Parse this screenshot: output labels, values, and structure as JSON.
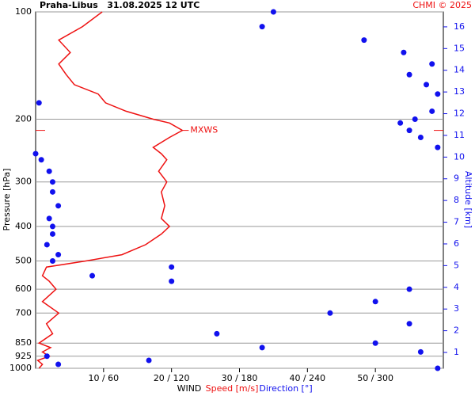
{
  "chart_data": {
    "type": "profile",
    "title": "Praha-Libus   31.08.2025 12 UTC",
    "credit": "CHMI © 2025",
    "ylabel": "Pressure [hPa]",
    "y2label": "Altitude [km]",
    "xlabel": "WIND",
    "xlabel_speed": "Speed [m/s]",
    "xlabel_direction": "Direction [°]",
    "ylog": true,
    "grid": true,
    "ylim": [
      100,
      1000
    ],
    "yticks": [
      100,
      200,
      300,
      400,
      500,
      600,
      700,
      850,
      925,
      1000
    ],
    "y2lim": [
      0.27,
      16.69
    ],
    "y2ticks": [
      1,
      2,
      3,
      4,
      5,
      6,
      7,
      8,
      9,
      10,
      11,
      12,
      13,
      14,
      15,
      16
    ],
    "xlim": [
      0,
      60
    ],
    "x2lim": [
      0,
      360
    ],
    "xticks": [
      {
        "value": 10,
        "label": "10 / 60"
      },
      {
        "value": 20,
        "label": "20 / 120"
      },
      {
        "value": 30,
        "label": "30 / 180"
      },
      {
        "value": 40,
        "label": "40 / 240"
      },
      {
        "value": 50,
        "label": "50 / 300"
      }
    ],
    "y": [
      1000,
      975,
      950,
      925,
      900,
      875,
      850,
      800,
      750,
      700,
      650,
      600,
      570,
      550,
      520,
      500,
      480,
      450,
      420,
      400,
      380,
      350,
      320,
      300,
      280,
      260,
      250,
      240,
      225,
      215,
      205,
      200,
      190,
      180,
      170,
      160,
      150,
      140,
      130,
      120,
      110,
      100
    ],
    "series": [
      {
        "name": "Speed [m/s]",
        "color": "#ee1111",
        "axis": "x",
        "values": [
          0.5,
          1,
          0.3,
          2,
          1,
          2.2,
          0.5,
          2.5,
          1.6,
          3.4,
          1,
          3,
          2,
          1,
          1.6,
          7.4,
          12.7,
          16.2,
          18.5,
          19.7,
          18.5,
          19,
          18.5,
          19.3,
          18.1,
          19.3,
          18.5,
          17.3,
          19.7,
          21.6,
          19.7,
          17.3,
          13.3,
          10.3,
          9.2,
          5.7,
          4.5,
          3.4,
          5.1,
          3.4,
          6.9,
          9.8
        ]
      },
      {
        "name": "Direction [°]",
        "color": "#1111ee",
        "axis": "x2",
        "values": [
          355,
          20,
          100,
          10,
          340,
          200,
          300,
          160,
          330,
          260,
          300,
          330,
          120,
          50,
          120,
          15,
          20,
          10,
          15,
          15,
          12,
          20,
          15,
          15,
          12,
          5,
          0,
          355,
          340,
          330,
          322,
          335,
          350,
          3,
          355,
          345,
          330,
          350,
          325,
          290,
          200,
          210
        ]
      }
    ],
    "annotations": [
      {
        "text": "MXWS",
        "y": 215,
        "x": 21.6
      }
    ]
  }
}
